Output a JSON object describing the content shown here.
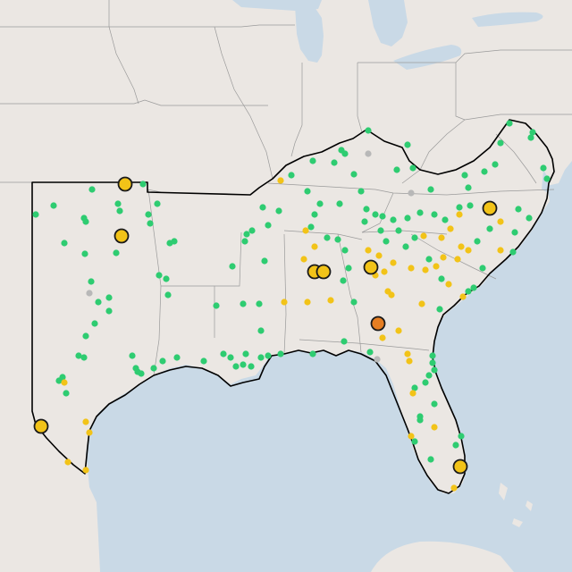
{
  "map": {
    "colors": {
      "water": "#c9d9e6",
      "land": "#ebe7e3",
      "green": "#2ecc71",
      "yellow": "#f2c318",
      "orange": "#e67e22",
      "gray": "#b8b8b8"
    },
    "legend_meaning_colors": [
      "green",
      "yellow",
      "orange",
      "gray"
    ],
    "icons": {
      "small_marker": "station-dot-icon",
      "large_marker": "station-large-circle-icon"
    }
  }
}
